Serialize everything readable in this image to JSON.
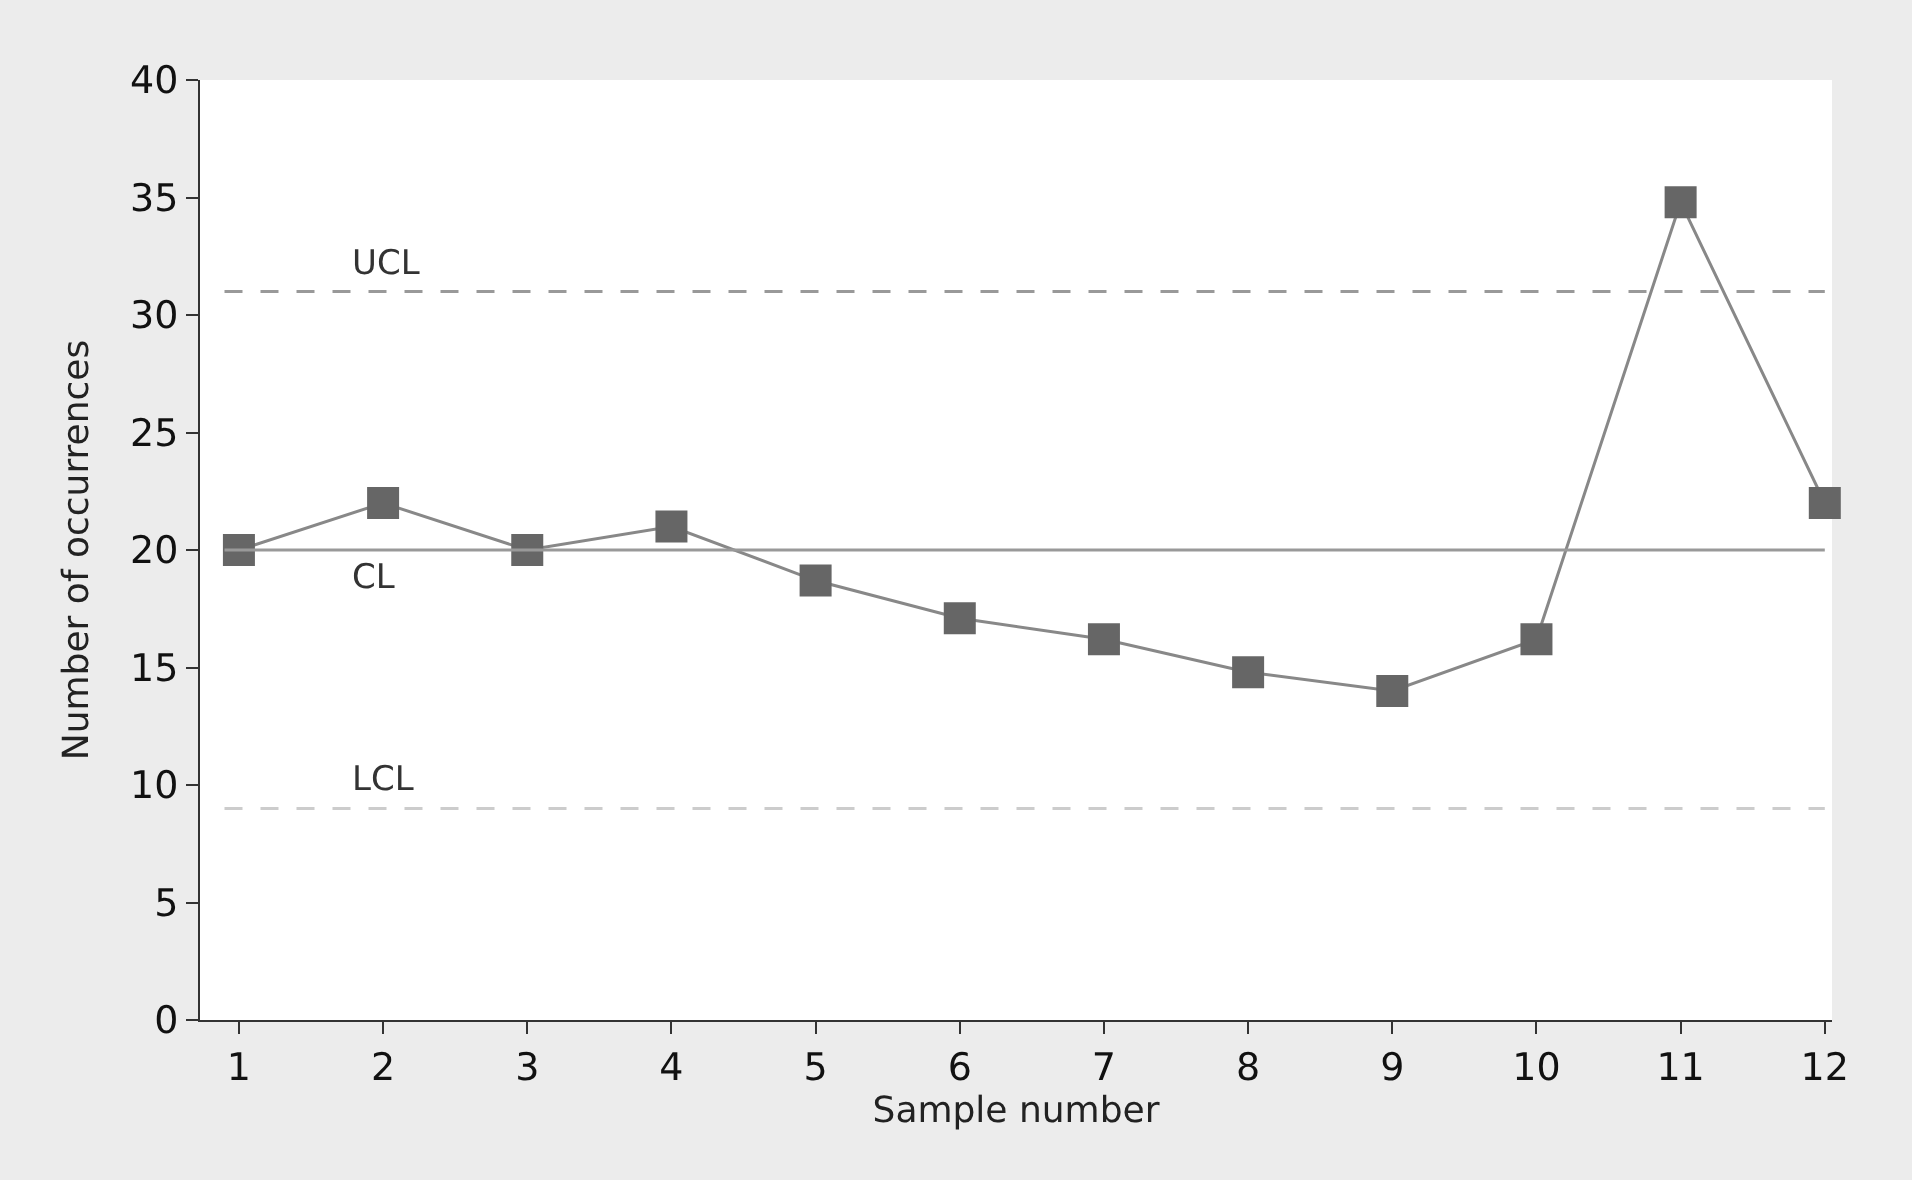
{
  "chart_data": {
    "type": "line",
    "xlabel": "Sample number",
    "ylabel": "Number of occurrences",
    "x": [
      1,
      2,
      3,
      4,
      5,
      6,
      7,
      8,
      9,
      10,
      11,
      12
    ],
    "series": [
      {
        "color": "#666666",
        "values": [
          20,
          22,
          20,
          21,
          18.7,
          17.1,
          16.2,
          14.8,
          14,
          16.2,
          34.8,
          22
        ]
      }
    ],
    "xlim": [
      0.73,
      12.05
    ],
    "xticks": [
      1,
      2,
      3,
      4,
      5,
      6,
      7,
      8,
      9,
      10,
      11,
      12
    ],
    "ylim": [
      0,
      40
    ],
    "yticks": [
      0,
      5,
      10,
      15,
      20,
      25,
      30,
      35,
      40
    ],
    "ref_lines": [
      {
        "axis": "y",
        "value": 31,
        "label": "UCL",
        "color": "#999999",
        "line_style": "dashed"
      },
      {
        "axis": "y",
        "value": 20,
        "label": "CL",
        "color": "#999999",
        "line_style": "solid"
      },
      {
        "axis": "y",
        "value": 9,
        "label": "LCL",
        "color": "#cccccc",
        "line_style": "dashed"
      }
    ],
    "legend": false,
    "marker": "square",
    "line_style": "solid"
  }
}
